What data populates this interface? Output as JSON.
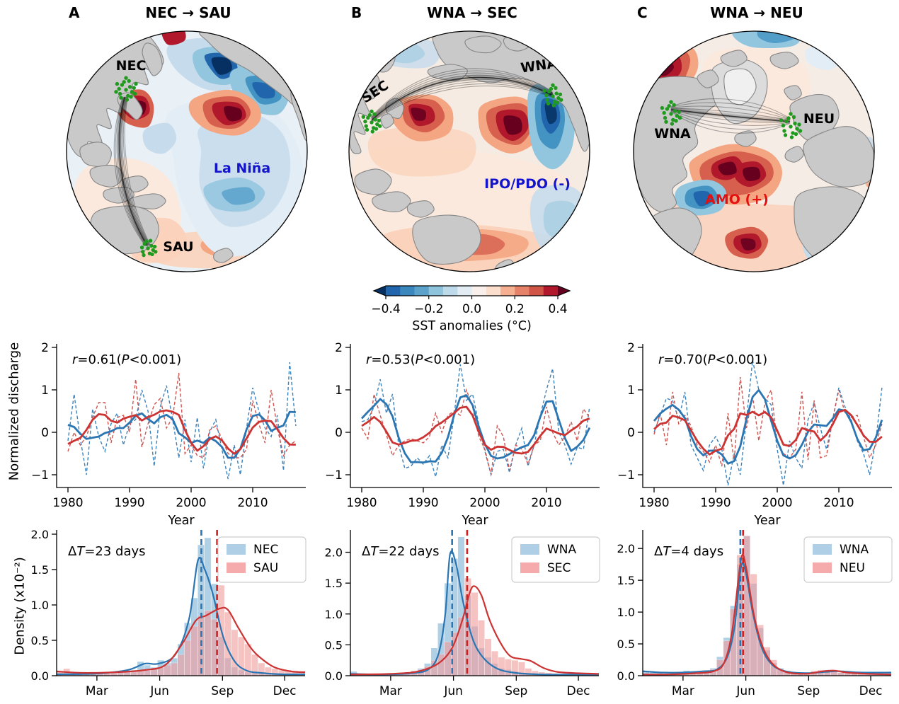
{
  "chart_data": [
    {
      "type": "map",
      "panel": "A",
      "letter": "A",
      "title": "NEC → SAU",
      "projection": "orthographic Pacific",
      "regions": {
        "source": "NEC",
        "dest": "SAU"
      },
      "mode": {
        "label": "La Niña",
        "color": "#1414cc"
      },
      "marker_color": "#1f9a1f"
    },
    {
      "type": "line",
      "panel": "A",
      "annotation": {
        "r": "0.61",
        "p": "<0.001"
      },
      "xlabel": "Year",
      "ylabel": "Normalized discharge",
      "x_start_year": 1980,
      "xticks": [
        1980,
        1990,
        2000,
        2010
      ],
      "ytick_labels": [
        "2",
        "1",
        "0",
        "−1"
      ],
      "ylim": [
        -1.35,
        2.05
      ],
      "series": [
        {
          "name": "NEC annual",
          "color": "#3b83bd",
          "style": "dashed",
          "values": [
            -0.2,
            0.9,
            -0.15,
            -1.0,
            0.55,
            -0.1,
            -0.45,
            0.2,
            0.45,
            -0.3,
            0.2,
            0.3,
            1.0,
            0.5,
            -0.8,
            0.6,
            1.1,
            0.3,
            -0.6,
            0.3,
            -0.7,
            0.35,
            -0.85,
            0.0,
            0.3,
            -0.4,
            -1.1,
            -0.3,
            -1.0,
            0.1,
            1.05,
            0.5,
            0.1,
            -0.1,
            0.4,
            -0.9,
            1.65,
            0.15
          ]
        },
        {
          "name": "SAU annual",
          "color": "#d05450",
          "style": "dashed",
          "values": [
            -0.45,
            0.0,
            -0.3,
            -0.1,
            0.35,
            0.7,
            0.7,
            -0.25,
            0.35,
            0.4,
            0.0,
            1.25,
            -0.35,
            0.2,
            0.65,
            0.8,
            0.1,
            0.35,
            1.4,
            -0.5,
            -0.3,
            -0.55,
            -0.6,
            0.05,
            0.15,
            -0.15,
            -0.5,
            -0.6,
            -0.6,
            -0.4,
            0.75,
            0.2,
            -0.25,
            1.0,
            0.1,
            -0.55,
            -0.3,
            -0.2
          ]
        },
        {
          "name": "NEC smoothed",
          "color": "#2b76b2",
          "style": "solid",
          "derived": "5yr weighted moving average of NEC annual"
        },
        {
          "name": "SAU smoothed",
          "color": "#cc3433",
          "style": "solid",
          "derived": "5yr weighted moving average of SAU annual"
        }
      ]
    },
    {
      "type": "histogram_kde",
      "panel": "A",
      "dt_days": "23",
      "ylabel": "Density (x10⁻²)",
      "xtick_labels": [
        "Mar",
        "Jun",
        "Sep",
        "Dec"
      ],
      "ytick_labels": [
        "0.0",
        "0.5",
        "1.0",
        "1.5",
        "2.0"
      ],
      "ymax": 2.05,
      "legend": [
        "NEC",
        "SAU"
      ],
      "mean_day_blue": 213,
      "mean_day_red": 236,
      "blue_fill": "#92bedd",
      "red_fill": "#f19c9c",
      "blue_hist": [
        0.02,
        0.02,
        0.03,
        0.02,
        0.03,
        0.03,
        0.05,
        0.03,
        0.04,
        0.05,
        0.06,
        0.08,
        0.2,
        0.15,
        0.12,
        0.22,
        0.18,
        0.25,
        0.45,
        0.75,
        1.1,
        1.85,
        1.95,
        1.3,
        0.55,
        0.25,
        0.12,
        0.08,
        0.05,
        0.04,
        0.03,
        0.03,
        0.02,
        0.02,
        0.02,
        0.02,
        0.02
      ],
      "red_hist": [
        0.07,
        0.1,
        0.05,
        0.05,
        0.04,
        0.04,
        0.05,
        0.04,
        0.05,
        0.05,
        0.06,
        0.07,
        0.08,
        0.08,
        0.1,
        0.12,
        0.15,
        0.18,
        0.3,
        0.5,
        0.7,
        0.85,
        0.92,
        0.8,
        1.28,
        0.9,
        0.65,
        0.55,
        0.45,
        0.3,
        0.18,
        0.12,
        0.1,
        0.08,
        0.08,
        0.07,
        0.06
      ],
      "blue_kde": [
        [
          1,
          0.02
        ],
        [
          60,
          0.03
        ],
        [
          105,
          0.08
        ],
        [
          130,
          0.17
        ],
        [
          150,
          0.17
        ],
        [
          175,
          0.3
        ],
        [
          195,
          0.8
        ],
        [
          208,
          1.63
        ],
        [
          218,
          1.5
        ],
        [
          230,
          1.15
        ],
        [
          245,
          0.55
        ],
        [
          262,
          0.2
        ],
        [
          280,
          0.07
        ],
        [
          300,
          0.04
        ],
        [
          330,
          0.02
        ],
        [
          365,
          0.02
        ]
      ],
      "red_kde": [
        [
          1,
          0.06
        ],
        [
          40,
          0.04
        ],
        [
          90,
          0.05
        ],
        [
          130,
          0.08
        ],
        [
          160,
          0.15
        ],
        [
          185,
          0.45
        ],
        [
          205,
          0.78
        ],
        [
          220,
          0.85
        ],
        [
          240,
          0.95
        ],
        [
          252,
          0.93
        ],
        [
          267,
          0.68
        ],
        [
          285,
          0.4
        ],
        [
          300,
          0.25
        ],
        [
          320,
          0.12
        ],
        [
          345,
          0.06
        ],
        [
          365,
          0.05
        ]
      ]
    },
    {
      "type": "map",
      "panel": "B",
      "letter": "B",
      "title": "WNA → SEC",
      "projection": "orthographic Pacific",
      "regions": {
        "source": "WNA",
        "dest": "SEC"
      },
      "mode": {
        "label": "IPO/PDO (-)",
        "color": "#1414cc"
      },
      "marker_color": "#1f9a1f"
    },
    {
      "type": "line",
      "panel": "B",
      "annotation": {
        "r": "0.53",
        "p": "<0.001"
      },
      "xlabel": "Year",
      "ylabel": "Normalized discharge",
      "x_start_year": 1980,
      "xticks": [
        1980,
        1990,
        2000,
        2010
      ],
      "ytick_labels": [
        "2",
        "1",
        "0",
        "−1"
      ],
      "ylim": [
        -1.35,
        2.05
      ],
      "series": [
        {
          "name": "WNA annual",
          "color": "#3b83bd",
          "style": "dashed",
          "values": [
            0.25,
            0.3,
            0.6,
            1.25,
            0.45,
            0.9,
            -0.3,
            -0.85,
            -0.8,
            -0.6,
            -0.75,
            -0.55,
            -1.05,
            -0.3,
            -0.6,
            0.4,
            1.6,
            0.75,
            0.9,
            0.2,
            -0.45,
            -1.0,
            -0.45,
            -0.4,
            -0.95,
            -0.3,
            0.1,
            -0.8,
            -0.3,
            0.4,
            1.0,
            1.5,
            0.0,
            -0.3,
            -0.75,
            -0.35,
            -0.4,
            0.6
          ]
        },
        {
          "name": "SEC annual",
          "color": "#d05450",
          "style": "dashed",
          "values": [
            0.1,
            -0.15,
            0.9,
            0.4,
            -0.05,
            -0.55,
            -0.3,
            -0.2,
            -0.15,
            -0.2,
            -0.25,
            -0.1,
            0.45,
            0.0,
            0.4,
            0.5,
            0.4,
            1.0,
            0.6,
            -0.1,
            -0.4,
            -1.0,
            0.15,
            -0.1,
            -0.9,
            -0.3,
            -0.4,
            -0.75,
            -0.3,
            -0.2,
            0.6,
            0.0,
            -0.3,
            -0.1,
            0.25,
            -0.2,
            0.55,
            0.35
          ]
        },
        {
          "name": "WNA smoothed",
          "color": "#2b76b2",
          "style": "solid",
          "derived": "5yr weighted moving average of WNA annual"
        },
        {
          "name": "SEC smoothed",
          "color": "#cc3433",
          "style": "solid",
          "derived": "5yr weighted moving average of SEC annual"
        }
      ]
    },
    {
      "type": "histogram_kde",
      "panel": "B",
      "dt_days": "22",
      "ylabel": "Density (x10⁻²)",
      "xtick_labels": [
        "Mar",
        "Jun",
        "Sep",
        "Dec"
      ],
      "ytick_labels": [
        "0.0",
        "0.5",
        "1.0",
        "1.5",
        "2.0"
      ],
      "ymax": 2.35,
      "legend": [
        "WNA",
        "SEC"
      ],
      "mean_day_blue": 150,
      "mean_day_red": 172,
      "blue_fill": "#92bedd",
      "red_fill": "#f19c9c",
      "blue_hist": [
        0.07,
        0.02,
        0.02,
        0.02,
        0.03,
        0.02,
        0.03,
        0.04,
        0.05,
        0.08,
        0.12,
        0.2,
        0.45,
        0.85,
        1.5,
        1.9,
        2.25,
        1.3,
        0.8,
        0.45,
        0.3,
        0.2,
        0.12,
        0.1,
        0.07,
        0.05,
        0.04,
        0.03,
        0.03,
        0.02,
        0.02,
        0.02,
        0.02,
        0.02,
        0.02,
        0.02,
        0.02
      ],
      "red_hist": [
        0.02,
        0.02,
        0.02,
        0.02,
        0.03,
        0.03,
        0.04,
        0.05,
        0.06,
        0.08,
        0.1,
        0.15,
        0.25,
        0.35,
        0.55,
        0.7,
        0.95,
        1.58,
        1.35,
        0.9,
        0.6,
        0.4,
        0.3,
        0.27,
        0.25,
        0.22,
        0.12,
        0.08,
        0.06,
        0.05,
        0.04,
        0.03,
        0.03,
        0.03,
        0.03,
        0.03,
        0.03
      ],
      "blue_kde": [
        [
          1,
          0.03
        ],
        [
          50,
          0.02
        ],
        [
          90,
          0.04
        ],
        [
          115,
          0.1
        ],
        [
          130,
          0.35
        ],
        [
          140,
          1.0
        ],
        [
          147,
          1.97
        ],
        [
          156,
          1.8
        ],
        [
          166,
          1.2
        ],
        [
          180,
          0.6
        ],
        [
          195,
          0.3
        ],
        [
          215,
          0.12
        ],
        [
          240,
          0.05
        ],
        [
          280,
          0.02
        ],
        [
          330,
          0.02
        ],
        [
          365,
          0.02
        ]
      ],
      "red_kde": [
        [
          1,
          0.02
        ],
        [
          60,
          0.03
        ],
        [
          100,
          0.07
        ],
        [
          130,
          0.2
        ],
        [
          150,
          0.45
        ],
        [
          165,
          0.9
        ],
        [
          176,
          1.35
        ],
        [
          183,
          1.45
        ],
        [
          193,
          1.3
        ],
        [
          205,
          0.9
        ],
        [
          220,
          0.55
        ],
        [
          235,
          0.32
        ],
        [
          252,
          0.27
        ],
        [
          265,
          0.24
        ],
        [
          285,
          0.12
        ],
        [
          305,
          0.06
        ],
        [
          335,
          0.04
        ],
        [
          365,
          0.03
        ]
      ]
    },
    {
      "type": "map",
      "panel": "C",
      "letter": "C",
      "title": "WNA → NEU",
      "projection": "orthographic North Atlantic",
      "regions": {
        "source": "WNA",
        "dest": "NEU"
      },
      "mode": {
        "label": "AMO (+)",
        "color": "#e60f0f"
      },
      "marker_color": "#1f9a1f"
    },
    {
      "type": "line",
      "panel": "C",
      "annotation": {
        "r": "0.70",
        "p": "<0.001"
      },
      "xlabel": "Year",
      "ylabel": "Normalized discharge",
      "x_start_year": 1980,
      "xticks": [
        1980,
        1990,
        2000,
        2010
      ],
      "ytick_labels": [
        "2",
        "1",
        "0",
        "−1"
      ],
      "ylim": [
        -1.35,
        2.05
      ],
      "series": [
        {
          "name": "WNA annual",
          "color": "#3b83bd",
          "style": "dashed",
          "values": [
            0.0,
            0.4,
            0.8,
            0.75,
            0.3,
            0.95,
            -0.3,
            -0.6,
            -0.9,
            -0.3,
            -0.1,
            -0.4,
            -1.25,
            -0.5,
            -1.0,
            0.3,
            1.7,
            1.0,
            0.8,
            0.65,
            -0.4,
            -1.25,
            -0.2,
            -0.6,
            -0.85,
            0.3,
            0.7,
            0.1,
            -0.4,
            0.3,
            1.05,
            0.6,
            0.3,
            -0.2,
            -0.5,
            -1.0,
            -0.2,
            1.05
          ]
        },
        {
          "name": "NEU annual",
          "color": "#d05450",
          "style": "dashed",
          "values": [
            -0.05,
            0.45,
            -0.3,
            0.95,
            0.2,
            0.4,
            0.15,
            -0.3,
            -0.45,
            -0.7,
            -0.3,
            -0.8,
            0.45,
            -0.7,
            1.3,
            0.1,
            0.85,
            -0.2,
            0.7,
            1.0,
            -0.25,
            -0.5,
            -0.6,
            -0.4,
            0.95,
            -0.65,
            0.75,
            -0.6,
            -0.55,
            0.3,
            1.0,
            0.45,
            0.35,
            0.4,
            -0.1,
            -0.6,
            -0.3,
            0.2
          ]
        },
        {
          "name": "WNA smoothed",
          "color": "#2b76b2",
          "style": "solid",
          "derived": "5yr weighted moving average of WNA annual"
        },
        {
          "name": "NEU smoothed",
          "color": "#cc3433",
          "style": "solid",
          "derived": "5yr weighted moving average of NEU annual"
        }
      ]
    },
    {
      "type": "histogram_kde",
      "panel": "C",
      "dt_days": "4",
      "ylabel": "Density (x10⁻²)",
      "xtick_labels": [
        "Mar",
        "Jun",
        "Sep",
        "Dec"
      ],
      "ytick_labels": [
        "0.0",
        "0.5",
        "1.0",
        "1.5",
        "2.0"
      ],
      "ymax": 2.28,
      "legend": [
        "WNA",
        "NEU"
      ],
      "mean_day_blue": 144,
      "mean_day_red": 148,
      "blue_fill": "#92bedd",
      "red_fill": "#f19c9c",
      "blue_hist": [
        0.07,
        0.05,
        0.05,
        0.04,
        0.06,
        0.05,
        0.08,
        0.07,
        0.06,
        0.08,
        0.12,
        0.3,
        0.6,
        1.1,
        1.75,
        2.2,
        1.45,
        0.75,
        0.4,
        0.2,
        0.12,
        0.08,
        0.05,
        0.04,
        0.03,
        0.05,
        0.06,
        0.07,
        0.06,
        0.05,
        0.05,
        0.04,
        0.04,
        0.05,
        0.04,
        0.05,
        0.06
      ],
      "red_hist": [
        0.02,
        0.02,
        0.02,
        0.03,
        0.03,
        0.03,
        0.04,
        0.04,
        0.05,
        0.06,
        0.1,
        0.25,
        0.55,
        1.05,
        1.9,
        2.2,
        1.6,
        0.8,
        0.45,
        0.25,
        0.1,
        0.07,
        0.05,
        0.04,
        0.04,
        0.08,
        0.09,
        0.07,
        0.06,
        0.05,
        0.04,
        0.04,
        0.03,
        0.03,
        0.03,
        0.02,
        0.02
      ],
      "blue_kde": [
        [
          1,
          0.07
        ],
        [
          30,
          0.05
        ],
        [
          60,
          0.05
        ],
        [
          90,
          0.07
        ],
        [
          110,
          0.1
        ],
        [
          125,
          0.3
        ],
        [
          136,
          0.8
        ],
        [
          145,
          1.71
        ],
        [
          152,
          1.62
        ],
        [
          162,
          1.0
        ],
        [
          175,
          0.45
        ],
        [
          190,
          0.18
        ],
        [
          210,
          0.07
        ],
        [
          240,
          0.04
        ],
        [
          268,
          0.06
        ],
        [
          290,
          0.07
        ],
        [
          320,
          0.05
        ],
        [
          365,
          0.05
        ]
      ],
      "red_kde": [
        [
          1,
          0.02
        ],
        [
          40,
          0.02
        ],
        [
          80,
          0.04
        ],
        [
          105,
          0.07
        ],
        [
          120,
          0.2
        ],
        [
          132,
          0.7
        ],
        [
          145,
          1.83
        ],
        [
          152,
          1.72
        ],
        [
          163,
          1.0
        ],
        [
          175,
          0.5
        ],
        [
          190,
          0.2
        ],
        [
          210,
          0.06
        ],
        [
          240,
          0.03
        ],
        [
          265,
          0.07
        ],
        [
          282,
          0.08
        ],
        [
          300,
          0.05
        ],
        [
          330,
          0.03
        ],
        [
          365,
          0.02
        ]
      ]
    },
    {
      "type": "colorbar",
      "label": "SST anomalies (°C)",
      "tick_labels": [
        "−0.4",
        "−0.2",
        "0.0",
        "0.2",
        "0.4"
      ],
      "segment_colors": [
        "#2166ac",
        "#3a87bd",
        "#5ba3cb",
        "#8ec4dc",
        "#bcdaea",
        "#e1edf3",
        "#f9f0eb",
        "#fbdecb",
        "#f5b092",
        "#e58267",
        "#d05546",
        "#b2182b"
      ],
      "extend_colors": [
        "#053061",
        "#67001f"
      ]
    }
  ]
}
